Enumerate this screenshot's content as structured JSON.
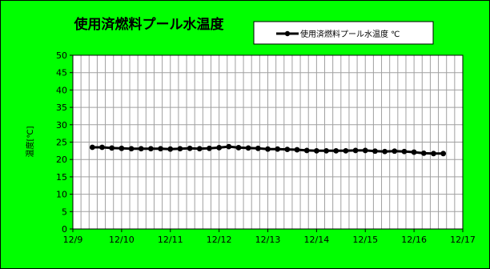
{
  "chart_data": {
    "type": "line",
    "title": "使用済燃料プール水温度",
    "ylabel": "温度[℃]",
    "xlabel": "",
    "ylim": [
      0,
      50
    ],
    "y_ticks": [
      0,
      5,
      10,
      15,
      20,
      25,
      30,
      35,
      40,
      45,
      50
    ],
    "x_tick_labels": [
      "12/9",
      "12/10",
      "12/11",
      "12/12",
      "12/13",
      "12/14",
      "12/15",
      "12/16",
      "12/17"
    ],
    "xlim": [
      0,
      8
    ],
    "grid": true,
    "legend_position": "top-right",
    "background_color": "#00ff00",
    "plot_background": "#ffffff",
    "series": [
      {
        "name": "使用済燃料プール水温度 ℃",
        "color": "#000000",
        "x": [
          0.4,
          0.6,
          0.8,
          1.0,
          1.2,
          1.4,
          1.6,
          1.8,
          2.0,
          2.2,
          2.4,
          2.6,
          2.8,
          3.0,
          3.2,
          3.4,
          3.6,
          3.8,
          4.0,
          4.2,
          4.4,
          4.6,
          4.8,
          5.0,
          5.2,
          5.4,
          5.6,
          5.8,
          6.0,
          6.2,
          6.4,
          6.6,
          6.8,
          7.0,
          7.2,
          7.4,
          7.6
        ],
        "values": [
          23.5,
          23.5,
          23.3,
          23.2,
          23.1,
          23.1,
          23.1,
          23.1,
          23.0,
          23.1,
          23.2,
          23.1,
          23.2,
          23.4,
          23.7,
          23.4,
          23.3,
          23.2,
          23.0,
          23.0,
          22.9,
          22.8,
          22.6,
          22.5,
          22.5,
          22.5,
          22.5,
          22.6,
          22.6,
          22.4,
          22.3,
          22.4,
          22.3,
          22.1,
          21.8,
          21.7,
          21.7
        ]
      }
    ]
  }
}
